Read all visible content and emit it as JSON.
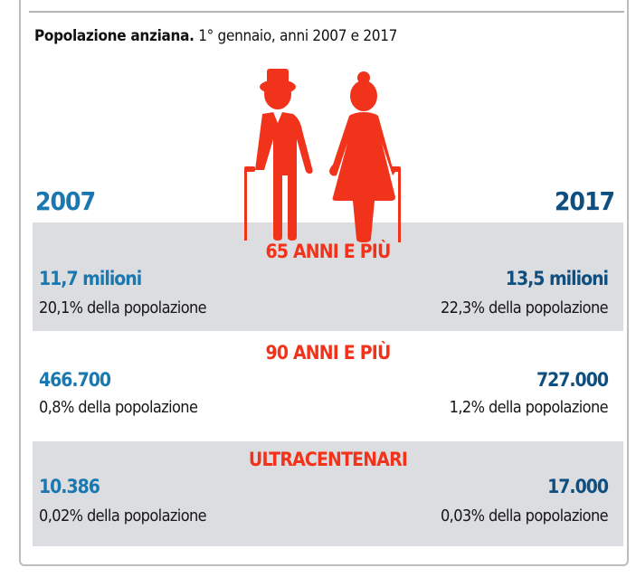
{
  "title": {
    "bold": "Popolazione anziana.",
    "rest": " 1° gennaio, anni 2007 e 2017"
  },
  "years": {
    "left": "2007",
    "right": "2017"
  },
  "colors": {
    "accent_red": "#f0331a",
    "blue_2007": "#1a78b0",
    "blue_2017": "#0f4f80",
    "band_gray": "#dcdde0"
  },
  "illustration": "elderly-couple-icon",
  "sections": [
    {
      "category": "65 ANNI E PIÙ",
      "left_value": "11,7 milioni",
      "left_pct": "20,1% della popolazione",
      "right_value": "13,5 milioni",
      "right_pct": "22,3% della popolazione"
    },
    {
      "category": "90 ANNI E PIÙ",
      "left_value": "466.700",
      "left_pct": "0,8% della popolazione",
      "right_value": "727.000",
      "right_pct": "1,2% della popolazione"
    },
    {
      "category": "ULTRACENTENARI",
      "left_value": "10.386",
      "left_pct": "0,02% della popolazione",
      "right_value": "17.000",
      "right_pct": "0,03% della popolazione"
    }
  ]
}
